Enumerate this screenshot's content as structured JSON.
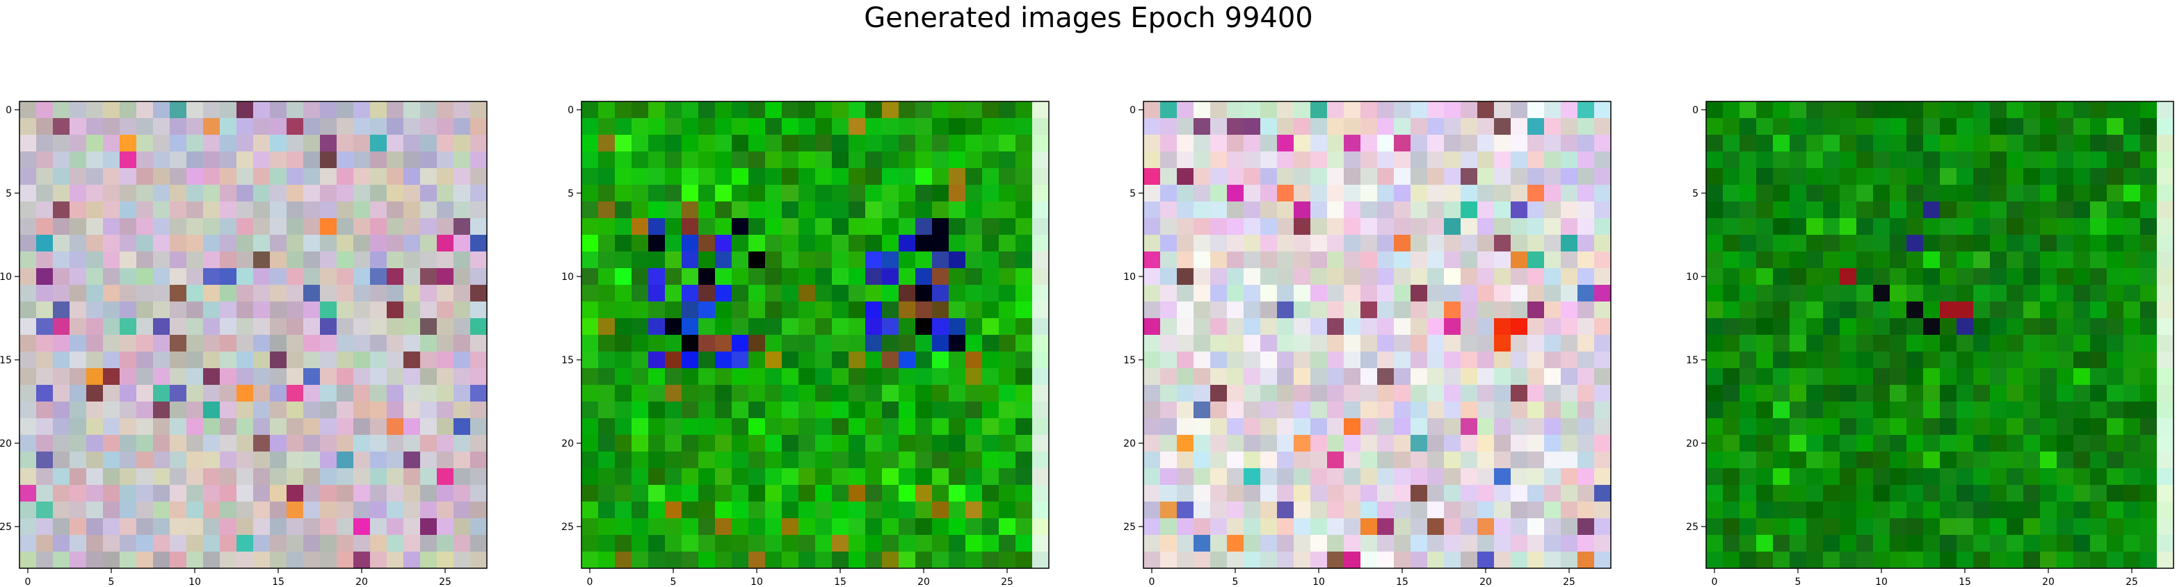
{
  "title": "Generated images Epoch 99400",
  "chart_data": [
    {
      "type": "heatmap",
      "palette": "pastel",
      "seed": 11,
      "rows": 28,
      "cols": 28,
      "xlim": [
        -0.5,
        27.5
      ],
      "ylim": [
        27.5,
        -0.5
      ],
      "xticks": [
        0,
        5,
        10,
        15,
        20,
        25
      ],
      "yticks": [
        0,
        5,
        10,
        15,
        20,
        25
      ]
    },
    {
      "type": "heatmap",
      "palette": "green",
      "seed": 23,
      "rows": 28,
      "cols": 28,
      "xlim": [
        -0.5,
        27.5
      ],
      "ylim": [
        27.5,
        -0.5
      ],
      "xticks": [
        0,
        5,
        10,
        15,
        20,
        25
      ],
      "yticks": [
        0,
        5,
        10,
        15,
        20,
        25
      ],
      "features": {
        "blue_band_rows": [
          7,
          15
        ],
        "bright_last_column": true
      }
    },
    {
      "type": "heatmap",
      "palette": "pastel-bright",
      "seed": 37,
      "rows": 28,
      "cols": 28,
      "xlim": [
        -0.5,
        27.5
      ],
      "ylim": [
        27.5,
        -0.5
      ],
      "xticks": [
        0,
        5,
        10,
        15,
        20,
        25
      ],
      "yticks": [
        0,
        5,
        10,
        15,
        20,
        25
      ],
      "features": {
        "red_cells": [
          [
            13,
            21
          ],
          [
            13,
            22
          ],
          [
            14,
            21
          ]
        ]
      }
    },
    {
      "type": "heatmap",
      "palette": "green-dark",
      "seed": 53,
      "rows": 28,
      "cols": 28,
      "xlim": [
        -0.5,
        27.5
      ],
      "ylim": [
        27.5,
        -0.5
      ],
      "xticks": [
        0,
        5,
        10,
        15,
        20,
        25
      ],
      "yticks": [
        0,
        5,
        10,
        15,
        20,
        25
      ],
      "features": {
        "bright_last_column": true
      }
    }
  ]
}
